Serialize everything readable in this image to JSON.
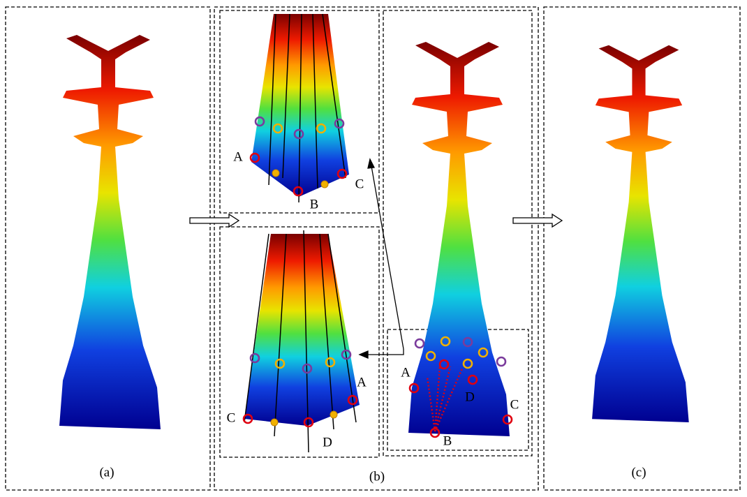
{
  "panels": [
    {
      "label": "(a)"
    },
    {
      "label": "(b)"
    },
    {
      "label": "(c)"
    }
  ],
  "top_view": {
    "labels": [
      "A",
      "B",
      "C"
    ]
  },
  "bottom_view": {
    "labels": [
      "C",
      "D",
      "A"
    ]
  },
  "inset": {
    "labels": [
      "A",
      "B",
      "C",
      "D"
    ]
  }
}
